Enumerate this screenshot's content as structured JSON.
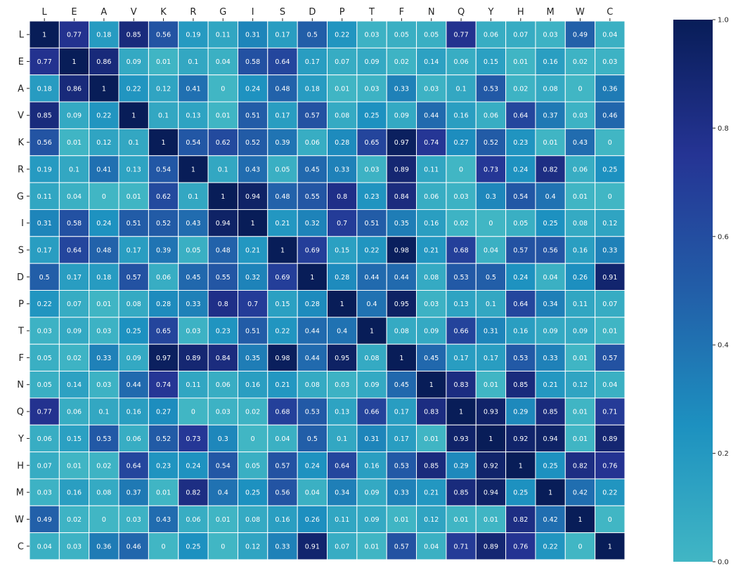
{
  "chart_data": {
    "type": "heatmap",
    "title": "",
    "xlabel": "",
    "ylabel": "",
    "x_labels": [
      "L",
      "E",
      "A",
      "V",
      "K",
      "R",
      "G",
      "I",
      "S",
      "D",
      "P",
      "T",
      "F",
      "N",
      "Q",
      "Y",
      "H",
      "M",
      "W",
      "C"
    ],
    "y_labels": [
      "L",
      "E",
      "A",
      "V",
      "K",
      "R",
      "G",
      "I",
      "S",
      "D",
      "P",
      "T",
      "F",
      "N",
      "Q",
      "Y",
      "H",
      "M",
      "W",
      "C"
    ],
    "values": [
      [
        1,
        0.77,
        0.18,
        0.85,
        0.56,
        0.19,
        0.11,
        0.31,
        0.17,
        0.5,
        0.22,
        0.03,
        0.05,
        0.05,
        0.77,
        0.06,
        0.07,
        0.03,
        0.49,
        0.04
      ],
      [
        0.77,
        1,
        0.86,
        0.09,
        0.01,
        0.1,
        0.04,
        0.58,
        0.64,
        0.17,
        0.07,
        0.09,
        0.02,
        0.14,
        0.06,
        0.15,
        0.01,
        0.16,
        0.02,
        0.03
      ],
      [
        0.18,
        0.86,
        1,
        0.22,
        0.12,
        0.41,
        0,
        0.24,
        0.48,
        0.18,
        0.01,
        0.03,
        0.33,
        0.03,
        0.1,
        0.53,
        0.02,
        0.08,
        0,
        0.36
      ],
      [
        0.85,
        0.09,
        0.22,
        1,
        0.1,
        0.13,
        0.01,
        0.51,
        0.17,
        0.57,
        0.08,
        0.25,
        0.09,
        0.44,
        0.16,
        0.06,
        0.64,
        0.37,
        0.03,
        0.46
      ],
      [
        0.56,
        0.01,
        0.12,
        0.1,
        1,
        0.54,
        0.62,
        0.52,
        0.39,
        0.06,
        0.28,
        0.65,
        0.97,
        0.74,
        0.27,
        0.52,
        0.23,
        0.01,
        0.43,
        0
      ],
      [
        0.19,
        0.1,
        0.41,
        0.13,
        0.54,
        1,
        0.1,
        0.43,
        0.05,
        0.45,
        0.33,
        0.03,
        0.89,
        0.11,
        0,
        0.73,
        0.24,
        0.82,
        0.06,
        0.25
      ],
      [
        0.11,
        0.04,
        0,
        0.01,
        0.62,
        0.1,
        1,
        0.94,
        0.48,
        0.55,
        0.8,
        0.23,
        0.84,
        0.06,
        0.03,
        0.3,
        0.54,
        0.4,
        0.01,
        0
      ],
      [
        0.31,
        0.58,
        0.24,
        0.51,
        0.52,
        0.43,
        0.94,
        1,
        0.21,
        0.32,
        0.7,
        0.51,
        0.35,
        0.16,
        0.02,
        0,
        0.05,
        0.25,
        0.08,
        0.12
      ],
      [
        0.17,
        0.64,
        0.48,
        0.17,
        0.39,
        0.05,
        0.48,
        0.21,
        1,
        0.69,
        0.15,
        0.22,
        0.98,
        0.21,
        0.68,
        0.04,
        0.57,
        0.56,
        0.16,
        0.33
      ],
      [
        0.5,
        0.17,
        0.18,
        0.57,
        0.06,
        0.45,
        0.55,
        0.32,
        0.69,
        1,
        0.28,
        0.44,
        0.44,
        0.08,
        0.53,
        0.5,
        0.24,
        0.04,
        0.26,
        0.91
      ],
      [
        0.22,
        0.07,
        0.01,
        0.08,
        0.28,
        0.33,
        0.8,
        0.7,
        0.15,
        0.28,
        1,
        0.4,
        0.95,
        0.03,
        0.13,
        0.1,
        0.64,
        0.34,
        0.11,
        0.07
      ],
      [
        0.03,
        0.09,
        0.03,
        0.25,
        0.65,
        0.03,
        0.23,
        0.51,
        0.22,
        0.44,
        0.4,
        1,
        0.08,
        0.09,
        0.66,
        0.31,
        0.16,
        0.09,
        0.09,
        0.01
      ],
      [
        0.05,
        0.02,
        0.33,
        0.09,
        0.97,
        0.89,
        0.84,
        0.35,
        0.98,
        0.44,
        0.95,
        0.08,
        1,
        0.45,
        0.17,
        0.17,
        0.53,
        0.33,
        0.01,
        0.57
      ],
      [
        0.05,
        0.14,
        0.03,
        0.44,
        0.74,
        0.11,
        0.06,
        0.16,
        0.21,
        0.08,
        0.03,
        0.09,
        0.45,
        1,
        0.83,
        0.01,
        0.85,
        0.21,
        0.12,
        0.04
      ],
      [
        0.77,
        0.06,
        0.1,
        0.16,
        0.27,
        0,
        0.03,
        0.02,
        0.68,
        0.53,
        0.13,
        0.66,
        0.17,
        0.83,
        1,
        0.93,
        0.29,
        0.85,
        0.01,
        0.71
      ],
      [
        0.06,
        0.15,
        0.53,
        0.06,
        0.52,
        0.73,
        0.3,
        0,
        0.04,
        0.5,
        0.1,
        0.31,
        0.17,
        0.01,
        0.93,
        1,
        0.92,
        0.94,
        0.01,
        0.89
      ],
      [
        0.07,
        0.01,
        0.02,
        0.64,
        0.23,
        0.24,
        0.54,
        0.05,
        0.57,
        0.24,
        0.64,
        0.16,
        0.53,
        0.85,
        0.29,
        0.92,
        1,
        0.25,
        0.82,
        0.76
      ],
      [
        0.03,
        0.16,
        0.08,
        0.37,
        0.01,
        0.82,
        0.4,
        0.25,
        0.56,
        0.04,
        0.34,
        0.09,
        0.33,
        0.21,
        0.85,
        0.94,
        0.25,
        1,
        0.42,
        0.22
      ],
      [
        0.49,
        0.02,
        0,
        0.03,
        0.43,
        0.06,
        0.01,
        0.08,
        0.16,
        0.26,
        0.11,
        0.09,
        0.01,
        0.12,
        0.01,
        0.01,
        0.82,
        0.42,
        1,
        0
      ],
      [
        0.04,
        0.03,
        0.36,
        0.46,
        0,
        0.25,
        0,
        0.12,
        0.33,
        0.91,
        0.07,
        0.01,
        0.57,
        0.04,
        0.71,
        0.89,
        0.76,
        0.22,
        0,
        1
      ]
    ],
    "value_range": [
      0,
      1
    ],
    "colormap": "YlGnBu",
    "colormap_stops": [
      "#41b6c4",
      "#1d91c0",
      "#225ea8",
      "#253494",
      "#081d58"
    ],
    "cell_border_color": "#ffffff",
    "colorbar": {
      "ticks": [
        0,
        0.2,
        0.4,
        0.6,
        0.8,
        1
      ],
      "tick_labels": [
        "0.0",
        "0.2",
        "0.4",
        "0.6",
        "0.8",
        "1.0"
      ]
    },
    "x_tick_position": "top",
    "legend": "colorbar-right",
    "grid": false
  }
}
